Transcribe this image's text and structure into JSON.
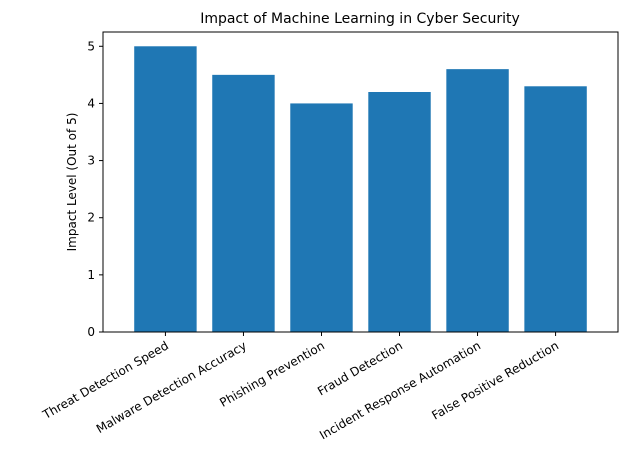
{
  "chart_data": {
    "type": "bar",
    "title": "Impact of Machine Learning in Cyber Security",
    "xlabel": "",
    "ylabel": "Impact Level (Out of 5)",
    "categories": [
      "Threat Detection Speed",
      "Malware Detection Accuracy",
      "Phishing Prevention",
      "Fraud Detection",
      "Incident Response Automation",
      "False Positive Reduction"
    ],
    "values": [
      5.0,
      4.5,
      4.0,
      4.2,
      4.6,
      4.3
    ],
    "ylim": [
      0,
      5.25
    ],
    "yticks": [
      0,
      1,
      2,
      3,
      4,
      5
    ],
    "bar_color": "#1f77b4",
    "grid": false,
    "legend": null,
    "xtick_rotation": -30
  }
}
